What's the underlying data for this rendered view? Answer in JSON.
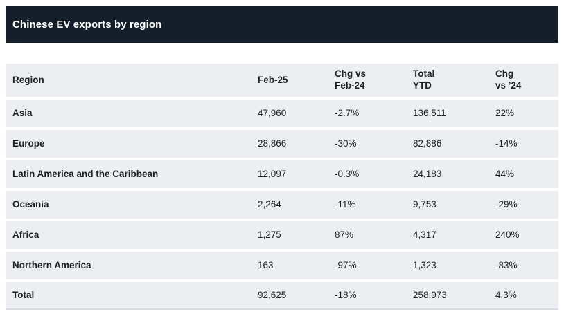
{
  "title": "Chinese EV exports by region",
  "colors": {
    "title_bar_bg": "#141f2a",
    "title_text": "#ffffff",
    "row_bg": "#eceef1",
    "body_text": "#1d2025",
    "table_bottom_border": "#d8dbe1",
    "page_bg": "#ffffff"
  },
  "table": {
    "headers": {
      "region": "Region",
      "feb25": "Feb-25",
      "chg_feb_l1": "Chg vs",
      "chg_feb_l2": "Feb-24",
      "ytd_l1": "Total",
      "ytd_l2": "YTD",
      "chg24_l1": "Chg",
      "chg24_l2": "vs ’24"
    },
    "rows": [
      {
        "region": "Asia",
        "feb25": "47,960",
        "chg_feb": "-2.7%",
        "ytd": "136,511",
        "chg24": "22%"
      },
      {
        "region": "Europe",
        "feb25": "28,866",
        "chg_feb": "-30%",
        "ytd": "82,886",
        "chg24": "-14%"
      },
      {
        "region": "Latin America and the Caribbean",
        "feb25": "12,097",
        "chg_feb": "-0.3%",
        "ytd": "24,183",
        "chg24": "44%"
      },
      {
        "region": "Oceania",
        "feb25": "2,264",
        "chg_feb": "-11%",
        "ytd": "9,753",
        "chg24": "-29%"
      },
      {
        "region": "Africa",
        "feb25": "1,275",
        "chg_feb": "87%",
        "ytd": "4,317",
        "chg24": "240%"
      },
      {
        "region": "Northern America",
        "feb25": "163",
        "chg_feb": "-97%",
        "ytd": "1,323",
        "chg24": "-83%"
      },
      {
        "region": "Total",
        "feb25": "92,625",
        "chg_feb": "-18%",
        "ytd": "258,973",
        "chg24": "4.3%"
      }
    ]
  },
  "chart_data": {
    "type": "table",
    "title": "Chinese EV exports by region",
    "columns": [
      "Region",
      "Feb-25",
      "Chg vs Feb-24",
      "Total YTD",
      "Chg vs ’24"
    ],
    "rows": [
      [
        "Asia",
        47960,
        "-2.7%",
        136511,
        "22%"
      ],
      [
        "Europe",
        28866,
        "-30%",
        82886,
        "-14%"
      ],
      [
        "Latin America and the Caribbean",
        12097,
        "-0.3%",
        24183,
        "44%"
      ],
      [
        "Oceania",
        2264,
        "-11%",
        9753,
        "-29%"
      ],
      [
        "Africa",
        1275,
        "87%",
        4317,
        "240%"
      ],
      [
        "Northern America",
        163,
        "-97%",
        1323,
        "-83%"
      ],
      [
        "Total",
        92625,
        "-18%",
        258973,
        "4.3%"
      ]
    ]
  }
}
